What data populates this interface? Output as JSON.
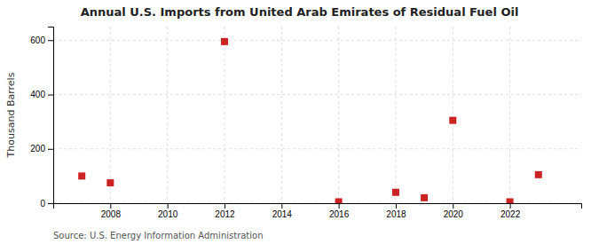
{
  "chart_data": {
    "type": "scatter",
    "title": "Annual U.S. Imports from United Arab Emirates of Residual Fuel Oil",
    "y_label": "Thousand Barrels",
    "annotation": "Source: U.S. Energy Information Administration",
    "x": [
      2007,
      2008,
      2012,
      2016,
      2018,
      2019,
      2020,
      2022,
      2023
    ],
    "values": [
      100,
      75,
      595,
      5,
      40,
      20,
      305,
      5,
      105
    ],
    "color": "#cc2222",
    "marker": "square",
    "xlim": [
      2006.0,
      2024.5
    ],
    "ylim": [
      0,
      650
    ],
    "xticks": [
      2008,
      2010,
      2012,
      2014,
      2016,
      2018,
      2020,
      2022
    ],
    "yticks": [
      0,
      200,
      400,
      600
    ],
    "grid": true
  }
}
